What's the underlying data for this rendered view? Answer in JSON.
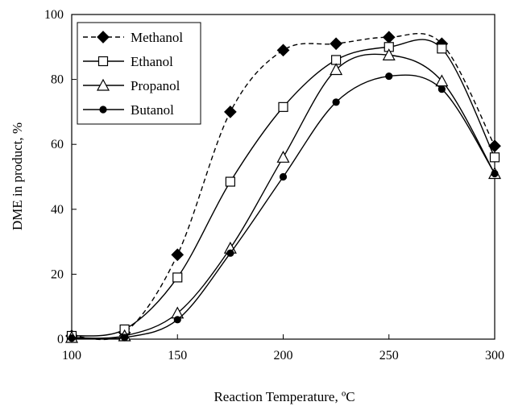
{
  "chart_data": {
    "type": "line",
    "x": [
      100,
      125,
      150,
      175,
      200,
      225,
      250,
      275,
      300
    ],
    "series": [
      {
        "name": "Methanol",
        "marker": "diamond",
        "line": "dashed",
        "values": [
          1,
          2,
          26,
          70,
          89,
          91,
          93,
          91,
          59.5
        ]
      },
      {
        "name": "Ethanol",
        "marker": "square",
        "line": "solid",
        "values": [
          1,
          3,
          19,
          48.5,
          71.5,
          86,
          90,
          89.5,
          56
        ]
      },
      {
        "name": "Propanol",
        "marker": "triangle",
        "line": "solid",
        "values": [
          0.5,
          1,
          8,
          28,
          56,
          83,
          87.5,
          79.5,
          51
        ]
      },
      {
        "name": "Butanol",
        "marker": "circle",
        "line": "solid",
        "values": [
          0.3,
          0.5,
          6,
          26.5,
          50,
          73,
          81,
          77,
          51
        ]
      }
    ],
    "title": "",
    "xlabel": "Reaction Temperature, ºC",
    "ylabel": "DME in product, %",
    "xlim": [
      100,
      300
    ],
    "ylim": [
      0,
      100
    ],
    "xticks": [
      "100",
      "150",
      "200",
      "250",
      "300"
    ],
    "yticks": [
      "0",
      "20",
      "40",
      "60",
      "80",
      "100"
    ],
    "grid": false,
    "legend": "top-left",
    "colors": {
      "line": "#000000",
      "marker_fill_solid": "#000000",
      "marker_fill_open": "#ffffff"
    }
  }
}
